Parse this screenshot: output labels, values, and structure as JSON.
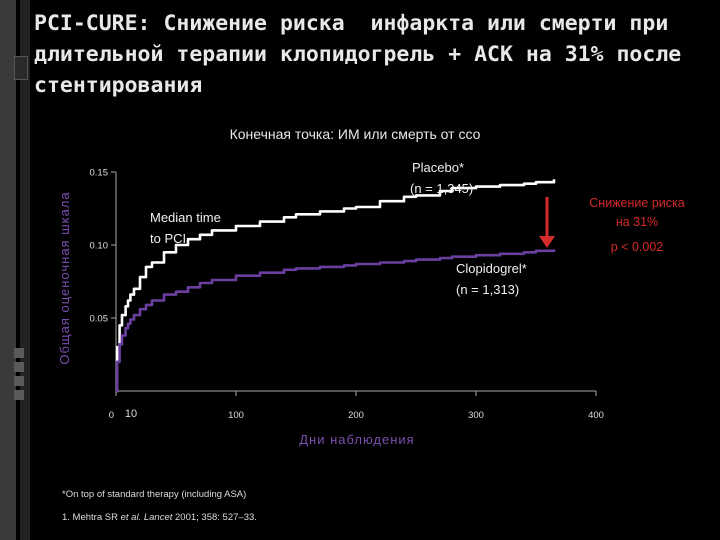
{
  "slide": {
    "title": "PCI-CURE: Снижение риска  инфаркта или смерти при длительной терапии клопидогрель + АСК на 31% после стентирования"
  },
  "colors": {
    "background": "#000000",
    "placebo": "#ffffff",
    "clopidogrel": "#6a3fa0",
    "reduction": "#d42a2a",
    "axis_label": "#7a4fb0"
  },
  "annotations": {
    "median_time_line1": "Median time",
    "median_time_line2": "to PCI",
    "placebo_line1": "Placebo*",
    "placebo_line2": "(n = 1,345)",
    "clopidogrel_line1": "Clopidogrel*",
    "clopidogrel_line2": "(n = 1,313)",
    "reduction_line1": "Снижение риска",
    "reduction_line2": "на 31%",
    "p_value": "p < 0.002"
  },
  "footnote": "*On top of standard therapy (including ASA)",
  "reference": {
    "prefix": "1. Mehtra SR ",
    "etal": "et al. Lancet",
    "suffix": " 2001; 358: 527–33."
  },
  "chart_data": {
    "type": "line",
    "title": "Конечная точка: ИМ или смерть от ссо",
    "xlabel": "Дни наблюдения",
    "ylabel": "Общая оценочная шкала",
    "xlim": [
      0,
      400
    ],
    "ylim": [
      0,
      0.15
    ],
    "x_ticks": [
      0,
      100,
      200,
      300,
      400
    ],
    "x_ticks_extra": [
      10
    ],
    "y_ticks": [
      0.05,
      0.1,
      0.15
    ],
    "grid": false,
    "series": [
      {
        "name": "Placebo",
        "x": [
          0,
          1,
          3,
          5,
          8,
          10,
          12,
          15,
          20,
          25,
          30,
          40,
          50,
          60,
          70,
          80,
          100,
          120,
          140,
          150,
          170,
          190,
          200,
          220,
          240,
          250,
          270,
          280,
          300,
          320,
          340,
          350,
          360,
          365
        ],
        "y": [
          0.0,
          0.03,
          0.045,
          0.052,
          0.058,
          0.062,
          0.066,
          0.07,
          0.078,
          0.085,
          0.088,
          0.095,
          0.1,
          0.104,
          0.107,
          0.11,
          0.113,
          0.116,
          0.119,
          0.121,
          0.123,
          0.125,
          0.126,
          0.13,
          0.133,
          0.134,
          0.137,
          0.139,
          0.14,
          0.141,
          0.142,
          0.143,
          0.143,
          0.145
        ]
      },
      {
        "name": "Clopidogrel",
        "x": [
          0,
          1,
          3,
          5,
          8,
          10,
          12,
          15,
          20,
          25,
          30,
          40,
          50,
          60,
          70,
          80,
          100,
          120,
          140,
          150,
          170,
          190,
          200,
          220,
          240,
          250,
          270,
          280,
          300,
          320,
          340,
          350,
          360,
          365
        ],
        "y": [
          0.0,
          0.02,
          0.032,
          0.038,
          0.043,
          0.046,
          0.049,
          0.052,
          0.056,
          0.059,
          0.062,
          0.066,
          0.068,
          0.071,
          0.074,
          0.076,
          0.079,
          0.081,
          0.083,
          0.084,
          0.085,
          0.086,
          0.087,
          0.088,
          0.089,
          0.09,
          0.091,
          0.092,
          0.093,
          0.094,
          0.095,
          0.096,
          0.096,
          0.097
        ]
      }
    ]
  }
}
